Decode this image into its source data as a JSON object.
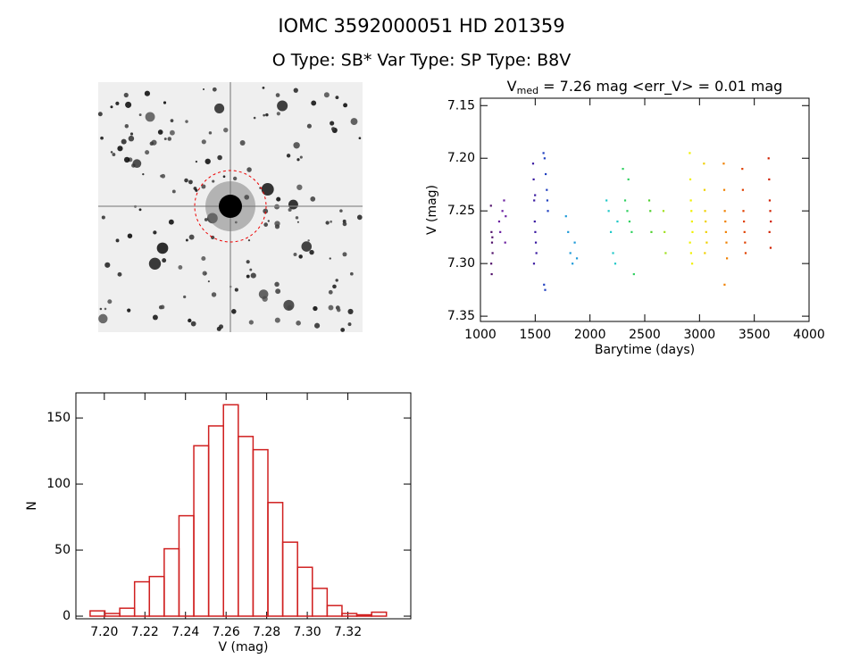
{
  "header": {
    "title": "IOMC 3592000051    HD 201359",
    "subtitle": "O Type: SB*  Var Type:    SP Type: B8V"
  },
  "chart_data": [
    {
      "type": "scatter",
      "title_parts": [
        "V",
        "med",
        " = 7.26 mag <err_V> = 0.01 mag"
      ],
      "x_label": "Barytime (days)",
      "y_label": "V (mag)",
      "xlim": [
        1000,
        4000
      ],
      "xticks": [
        1000,
        1500,
        2000,
        2500,
        3000,
        3500,
        4000
      ],
      "ylim": [
        7.355,
        7.143
      ],
      "yticks": [
        7.15,
        {
          "value": 7.2,
          "label": "7.20"
        },
        7.25,
        {
          "value": 7.3,
          "label": "7.30"
        },
        7.35
      ],
      "series": [
        {
          "color": "#50106a",
          "x": [
            1095,
            1100,
            1105,
            1110,
            1098,
            1102,
            1108
          ],
          "y": [
            7.245,
            7.27,
            7.28,
            7.29,
            7.3,
            7.31,
            7.275
          ]
        },
        {
          "color": "#6a20a0",
          "x": [
            1170,
            1180,
            1200,
            1215,
            1225,
            1230
          ],
          "y": [
            7.26,
            7.27,
            7.25,
            7.24,
            7.28,
            7.255
          ]
        },
        {
          "color": "#3a1aa0",
          "x": [
            1480,
            1485,
            1490,
            1495,
            1500,
            1505,
            1510,
            1488,
            1498
          ],
          "y": [
            7.205,
            7.22,
            7.24,
            7.26,
            7.27,
            7.28,
            7.29,
            7.3,
            7.235
          ]
        },
        {
          "color": "#2040c0",
          "x": [
            1575,
            1585,
            1595,
            1605,
            1615,
            1580,
            1590,
            1610
          ],
          "y": [
            7.195,
            7.2,
            7.215,
            7.23,
            7.25,
            7.32,
            7.325,
            7.24
          ]
        },
        {
          "color": "#1e9ad8",
          "x": [
            1780,
            1800,
            1820,
            1840,
            1860,
            1880
          ],
          "y": [
            7.255,
            7.27,
            7.29,
            7.3,
            7.28,
            7.295
          ]
        },
        {
          "color": "#20c8c8",
          "x": [
            2150,
            2170,
            2190,
            2210,
            2230,
            2250
          ],
          "y": [
            7.24,
            7.25,
            7.27,
            7.29,
            7.3,
            7.26
          ]
        },
        {
          "color": "#30d060",
          "x": [
            2300,
            2320,
            2340,
            2360,
            2380,
            2400,
            2350
          ],
          "y": [
            7.21,
            7.24,
            7.25,
            7.26,
            7.27,
            7.31,
            7.22
          ]
        },
        {
          "color": "#50d030",
          "x": [
            2540,
            2550,
            2560
          ],
          "y": [
            7.24,
            7.25,
            7.27
          ]
        },
        {
          "color": "#a0e020",
          "x": [
            2670,
            2680,
            2690
          ],
          "y": [
            7.25,
            7.27,
            7.29
          ]
        },
        {
          "color": "#f0f000",
          "x": [
            2910,
            2915,
            2920,
            2925,
            2930,
            2935,
            2912,
            2922,
            2932
          ],
          "y": [
            7.195,
            7.22,
            7.24,
            7.25,
            7.26,
            7.27,
            7.28,
            7.29,
            7.3
          ]
        },
        {
          "color": "#f0d000",
          "x": [
            3040,
            3045,
            3050,
            3055,
            3060,
            3065,
            3048
          ],
          "y": [
            7.205,
            7.23,
            7.25,
            7.26,
            7.27,
            7.28,
            7.29
          ]
        },
        {
          "color": "#f08000",
          "x": [
            3220,
            3225,
            3230,
            3235,
            3240,
            3245,
            3250,
            3228
          ],
          "y": [
            7.205,
            7.23,
            7.25,
            7.26,
            7.27,
            7.28,
            7.295,
            7.32
          ]
        },
        {
          "color": "#e04000",
          "x": [
            3390,
            3395,
            3400,
            3405,
            3410,
            3415,
            3420
          ],
          "y": [
            7.21,
            7.23,
            7.25,
            7.26,
            7.27,
            7.28,
            7.29
          ]
        },
        {
          "color": "#d02000",
          "x": [
            3630,
            3635,
            3640,
            3645,
            3650,
            3638,
            3648
          ],
          "y": [
            7.2,
            7.22,
            7.24,
            7.25,
            7.26,
            7.27,
            7.285
          ]
        }
      ]
    },
    {
      "type": "histogram",
      "x_label": "V (mag)",
      "y_label": "N",
      "color": "#d02020",
      "bins": [
        7.193,
        7.2003,
        7.2076,
        7.2149,
        7.2222,
        7.2295,
        7.2368,
        7.2441,
        7.2514,
        7.2587,
        7.266,
        7.2733,
        7.2806,
        7.2879,
        7.2952,
        7.3025,
        7.3098,
        7.3171,
        7.3244,
        7.3317,
        7.339
      ],
      "values": [
        4,
        2,
        6,
        26,
        30,
        51,
        76,
        129,
        144,
        160,
        136,
        126,
        86,
        56,
        37,
        21,
        8,
        2,
        1,
        3
      ],
      "xlim": [
        7.186,
        7.351
      ],
      "xticks": [
        {
          "value": 7.2,
          "label": "7.20"
        },
        7.22,
        7.24,
        7.26,
        7.28,
        {
          "value": 7.3,
          "label": "7.30"
        },
        7.32
      ],
      "ylim": [
        -2,
        169
      ],
      "yticks": [
        0,
        50,
        100,
        150
      ]
    }
  ]
}
